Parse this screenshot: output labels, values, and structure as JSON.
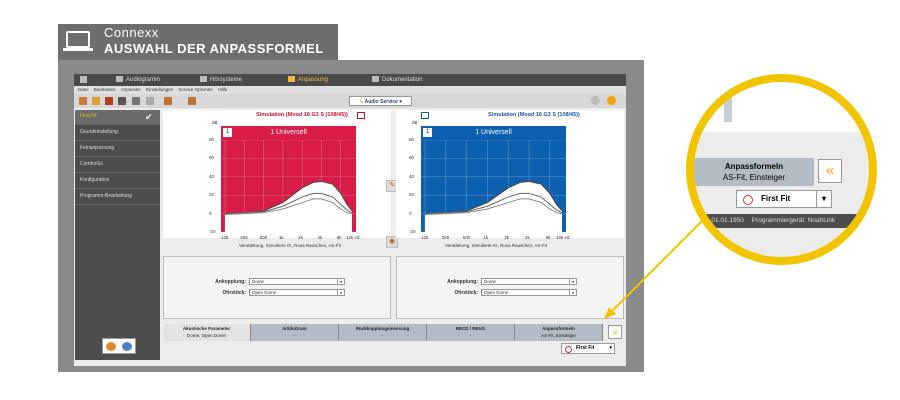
{
  "header": {
    "brand": "Connexx",
    "title": "AUSWAHL DER ANPASSFORMEL"
  },
  "app_tabs": [
    {
      "label": "Audiogramm",
      "active": false
    },
    {
      "label": "Hörsysteme",
      "active": false
    },
    {
      "label": "Anpassung",
      "active": true
    },
    {
      "label": "Dokumentation",
      "active": false
    }
  ],
  "menu": [
    "Datei",
    "Bearbeiten",
    "Anpassen",
    "Einstellungen",
    "Service Optionen",
    "Hilfe"
  ],
  "toolbar": {
    "audio_service_prefix": "⇘",
    "audio_service": "Audio Service"
  },
  "sidebar": {
    "items": [
      {
        "label": "First Fit",
        "active": true
      },
      {
        "label": "Grundeinstellung",
        "active": false
      },
      {
        "label": "Feinanpassung",
        "active": false
      },
      {
        "label": "ComforGo",
        "active": false
      },
      {
        "label": "Konfiguration",
        "active": false
      },
      {
        "label": "Programm-Bearbeitung",
        "active": false
      }
    ],
    "check": "✔"
  },
  "left_panel": {
    "title": "Simulation (Mood 16 G3 S (108/45))",
    "program_num": "1",
    "program_name": "1 Universell",
    "caption": "Verstärkung, Simulierte IG, Rosa Rauschen, AS-Fit",
    "color": "#d81b47"
  },
  "right_panel": {
    "title": "Simulation (Mood 16 G3 S (108/45))",
    "program_num": "1",
    "program_name": "1 Universell",
    "caption": "Verstärkung, Simulierte IG, Rosa Rauschen, AS-Fit",
    "color": "#0d5fb0"
  },
  "chart_axes": {
    "y_unit": "dB",
    "y_ticks": [
      "80",
      "60",
      "40",
      "20",
      "0",
      "-20"
    ],
    "x_ticks": [
      "125",
      "250",
      "500",
      "1k",
      "2k",
      "4k",
      "8k"
    ],
    "x_last": "12k Hz"
  },
  "chart_data": [
    {
      "type": "line",
      "title": "Simulation (Mood 16 G3 S (108/45))",
      "xlabel": "",
      "ylabel": "dB",
      "ylim": [
        -20,
        80
      ],
      "x": [
        125,
        250,
        500,
        1000,
        2000,
        3000,
        4000,
        6000,
        8000,
        10000,
        12000
      ],
      "series": [
        {
          "values": [
            0,
            1,
            3,
            12,
            28,
            34,
            35,
            32,
            22,
            10,
            3
          ]
        },
        {
          "values": [
            0,
            1,
            2,
            8,
            18,
            22,
            22,
            18,
            10,
            4,
            1
          ]
        },
        {
          "values": [
            -1,
            0,
            1,
            5,
            12,
            16,
            16,
            12,
            5,
            1,
            0
          ]
        }
      ]
    },
    {
      "type": "line",
      "title": "Simulation (Mood 16 G3 S (108/45))",
      "xlabel": "",
      "ylabel": "dB",
      "ylim": [
        -20,
        80
      ],
      "x": [
        125,
        250,
        500,
        1000,
        2000,
        3000,
        4000,
        6000,
        8000,
        10000,
        12000
      ],
      "series": [
        {
          "values": [
            0,
            1,
            3,
            12,
            28,
            34,
            35,
            32,
            22,
            10,
            3
          ]
        },
        {
          "values": [
            0,
            1,
            2,
            8,
            18,
            22,
            22,
            18,
            10,
            4,
            1
          ]
        },
        {
          "values": [
            -1,
            0,
            1,
            5,
            12,
            16,
            16,
            12,
            5,
            1,
            0
          ]
        }
      ]
    }
  ],
  "fields_left": {
    "ankopplung_label": "Ankopplung:",
    "ankopplung_value": "Dome",
    "ohrstueck_label": "Ohrstück:",
    "ohrstueck_value": "Open Dome"
  },
  "fields_right": {
    "ankopplung_label": "Ankopplung:",
    "ankopplung_value": "Dome",
    "ohrstueck_label": "Ohrstück:",
    "ohrstueck_value": "Open Dome"
  },
  "bottom_tabs": [
    {
      "title": "Akustische Parameter",
      "sub": "Dome, Open Dome"
    },
    {
      "title": "InSituGram",
      "sub": "-"
    },
    {
      "title": "Rückkopplungsmessung",
      "sub": "-"
    },
    {
      "title": "RECD / REUG",
      "sub": "-"
    },
    {
      "title": "Anpassformeln",
      "sub": "AS-Fit, Einsteiger"
    }
  ],
  "chevron": "«",
  "first_fit_button": "First Fit",
  "zoom": {
    "tab_title": "Anpassformeln",
    "tab_sub": "AS-Fit, Einsteiger",
    "button": "First Fit",
    "status_date": "rd. 01.01.1950",
    "status_device": "Programmiergerät: NoahLink"
  },
  "colors": {
    "accent": "#f2c400",
    "banner": "#6e6e6e"
  }
}
